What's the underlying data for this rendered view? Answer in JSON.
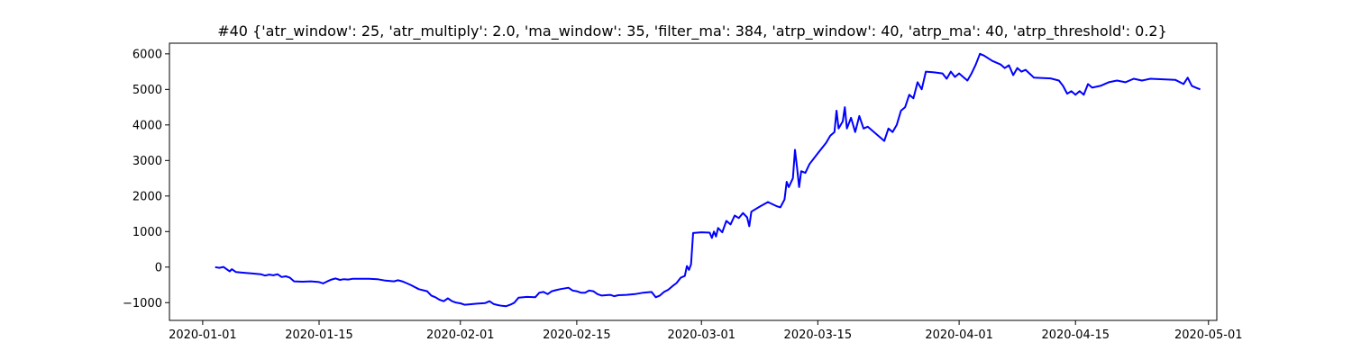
{
  "chart_data": {
    "type": "line",
    "title": "#40 {'atr_window': 25, 'atr_multiply': 2.0, 'ma_window': 35, 'filter_ma': 384, 'atrp_window': 40, 'atrp_ma': 40, 'atrp_threshold': 0.2}",
    "xlabel": "",
    "ylabel": "",
    "x_axis_type": "date",
    "xlim": [
      "2019-12-28",
      "2020-05-02"
    ],
    "ylim": [
      -1500,
      6300
    ],
    "grid": false,
    "line_color": "#0000ff",
    "xticks": [
      {
        "value": "2020-01-01",
        "label": "2020-01-01"
      },
      {
        "value": "2020-01-15",
        "label": "2020-01-15"
      },
      {
        "value": "2020-02-01",
        "label": "2020-02-01"
      },
      {
        "value": "2020-02-15",
        "label": "2020-02-15"
      },
      {
        "value": "2020-03-01",
        "label": "2020-03-01"
      },
      {
        "value": "2020-03-15",
        "label": "2020-03-15"
      },
      {
        "value": "2020-04-01",
        "label": "2020-04-01"
      },
      {
        "value": "2020-04-15",
        "label": "2020-04-15"
      },
      {
        "value": "2020-05-01",
        "label": "2020-05-01"
      }
    ],
    "yticks": [
      {
        "value": -1000,
        "label": "−1000"
      },
      {
        "value": 0,
        "label": "0"
      },
      {
        "value": 1000,
        "label": "1000"
      },
      {
        "value": 2000,
        "label": "2000"
      },
      {
        "value": 3000,
        "label": "3000"
      },
      {
        "value": 4000,
        "label": "4000"
      },
      {
        "value": 5000,
        "label": "5000"
      },
      {
        "value": 6000,
        "label": "6000"
      }
    ],
    "series": [
      {
        "points": [
          [
            "2020-01-02T12:00",
            0
          ],
          [
            "2020-01-03T00:00",
            -20
          ],
          [
            "2020-01-03T12:00",
            5
          ],
          [
            "2020-01-04T00:00",
            -80
          ],
          [
            "2020-01-04T06:00",
            -120
          ],
          [
            "2020-01-04T12:00",
            -60
          ],
          [
            "2020-01-05T00:00",
            -140
          ],
          [
            "2020-01-06T00:00",
            -160
          ],
          [
            "2020-01-07T00:00",
            -180
          ],
          [
            "2020-01-08T00:00",
            -200
          ],
          [
            "2020-01-08T12:00",
            -240
          ],
          [
            "2020-01-09T00:00",
            -210
          ],
          [
            "2020-01-09T12:00",
            -230
          ],
          [
            "2020-01-10T00:00",
            -200
          ],
          [
            "2020-01-10T12:00",
            -280
          ],
          [
            "2020-01-11T00:00",
            -260
          ],
          [
            "2020-01-11T12:00",
            -300
          ],
          [
            "2020-01-12T00:00",
            -400
          ],
          [
            "2020-01-13T00:00",
            -410
          ],
          [
            "2020-01-14T00:00",
            -400
          ],
          [
            "2020-01-15T00:00",
            -420
          ],
          [
            "2020-01-15T12:00",
            -460
          ],
          [
            "2020-01-16T00:00",
            -400
          ],
          [
            "2020-01-16T12:00",
            -350
          ],
          [
            "2020-01-17T00:00",
            -320
          ],
          [
            "2020-01-17T12:00",
            -360
          ],
          [
            "2020-01-18T00:00",
            -340
          ],
          [
            "2020-01-18T12:00",
            -350
          ],
          [
            "2020-01-19T00:00",
            -330
          ],
          [
            "2020-01-20T00:00",
            -330
          ],
          [
            "2020-01-21T00:00",
            -330
          ],
          [
            "2020-01-22T00:00",
            -340
          ],
          [
            "2020-01-23T00:00",
            -380
          ],
          [
            "2020-01-24T00:00",
            -400
          ],
          [
            "2020-01-24T12:00",
            -370
          ],
          [
            "2020-01-25T00:00",
            -400
          ],
          [
            "2020-01-25T12:00",
            -450
          ],
          [
            "2020-01-26T00:00",
            -500
          ],
          [
            "2020-01-27T00:00",
            -620
          ],
          [
            "2020-01-28T00:00",
            -680
          ],
          [
            "2020-01-28T12:00",
            -800
          ],
          [
            "2020-01-29T00:00",
            -850
          ],
          [
            "2020-01-29T12:00",
            -920
          ],
          [
            "2020-01-30T00:00",
            -960
          ],
          [
            "2020-01-30T12:00",
            -880
          ],
          [
            "2020-01-31T00:00",
            -960
          ],
          [
            "2020-01-31T12:00",
            -1000
          ],
          [
            "2020-02-01T00:00",
            -1020
          ],
          [
            "2020-02-01T12:00",
            -1060
          ],
          [
            "2020-02-02T00:00",
            -1050
          ],
          [
            "2020-02-03T00:00",
            -1030
          ],
          [
            "2020-02-04T00:00",
            -1010
          ],
          [
            "2020-02-04T12:00",
            -960
          ],
          [
            "2020-02-05T00:00",
            -1040
          ],
          [
            "2020-02-05T12:00",
            -1070
          ],
          [
            "2020-02-06T00:00",
            -1090
          ],
          [
            "2020-02-06T12:00",
            -1100
          ],
          [
            "2020-02-07T00:00",
            -1060
          ],
          [
            "2020-02-07T12:00",
            -1000
          ],
          [
            "2020-02-08T00:00",
            -860
          ],
          [
            "2020-02-09T00:00",
            -840
          ],
          [
            "2020-02-10T00:00",
            -850
          ],
          [
            "2020-02-10T12:00",
            -720
          ],
          [
            "2020-02-11T00:00",
            -700
          ],
          [
            "2020-02-11T12:00",
            -760
          ],
          [
            "2020-02-12T00:00",
            -680
          ],
          [
            "2020-02-12T12:00",
            -650
          ],
          [
            "2020-02-13T00:00",
            -620
          ],
          [
            "2020-02-14T00:00",
            -580
          ],
          [
            "2020-02-14T12:00",
            -660
          ],
          [
            "2020-02-15T00:00",
            -680
          ],
          [
            "2020-02-15T12:00",
            -720
          ],
          [
            "2020-02-16T00:00",
            -720
          ],
          [
            "2020-02-16T12:00",
            -660
          ],
          [
            "2020-02-17T00:00",
            -680
          ],
          [
            "2020-02-17T12:00",
            -760
          ],
          [
            "2020-02-18T00:00",
            -800
          ],
          [
            "2020-02-19T00:00",
            -780
          ],
          [
            "2020-02-19T12:00",
            -820
          ],
          [
            "2020-02-20T00:00",
            -790
          ],
          [
            "2020-02-21T00:00",
            -780
          ],
          [
            "2020-02-22T00:00",
            -760
          ],
          [
            "2020-02-23T00:00",
            -720
          ],
          [
            "2020-02-24T00:00",
            -700
          ],
          [
            "2020-02-24T12:00",
            -850
          ],
          [
            "2020-02-25T00:00",
            -800
          ],
          [
            "2020-02-25T12:00",
            -700
          ],
          [
            "2020-02-26T00:00",
            -640
          ],
          [
            "2020-02-26T12:00",
            -540
          ],
          [
            "2020-02-27T00:00",
            -450
          ],
          [
            "2020-02-27T12:00",
            -300
          ],
          [
            "2020-02-28T00:00",
            -250
          ],
          [
            "2020-02-28T06:00",
            30
          ],
          [
            "2020-02-28T12:00",
            -80
          ],
          [
            "2020-02-28T18:00",
            80
          ],
          [
            "2020-02-29T00:00",
            960
          ],
          [
            "2020-03-01T00:00",
            980
          ],
          [
            "2020-03-02T00:00",
            970
          ],
          [
            "2020-03-02T06:00",
            820
          ],
          [
            "2020-03-02T12:00",
            1000
          ],
          [
            "2020-03-02T18:00",
            860
          ],
          [
            "2020-03-03T00:00",
            1100
          ],
          [
            "2020-03-03T12:00",
            980
          ],
          [
            "2020-03-04T00:00",
            1300
          ],
          [
            "2020-03-04T12:00",
            1200
          ],
          [
            "2020-03-05T00:00",
            1450
          ],
          [
            "2020-03-05T12:00",
            1380
          ],
          [
            "2020-03-06T00:00",
            1520
          ],
          [
            "2020-03-06T12:00",
            1400
          ],
          [
            "2020-03-06T18:00",
            1150
          ],
          [
            "2020-03-07T00:00",
            1560
          ],
          [
            "2020-03-08T00:00",
            1700
          ],
          [
            "2020-03-09T00:00",
            1830
          ],
          [
            "2020-03-10T00:00",
            1720
          ],
          [
            "2020-03-10T12:00",
            1680
          ],
          [
            "2020-03-11T00:00",
            1900
          ],
          [
            "2020-03-11T06:00",
            2400
          ],
          [
            "2020-03-11T12:00",
            2250
          ],
          [
            "2020-03-12T00:00",
            2500
          ],
          [
            "2020-03-12T06:00",
            3300
          ],
          [
            "2020-03-12T12:00",
            2800
          ],
          [
            "2020-03-12T18:00",
            2250
          ],
          [
            "2020-03-13T00:00",
            2700
          ],
          [
            "2020-03-13T12:00",
            2650
          ],
          [
            "2020-03-14T00:00",
            2900
          ],
          [
            "2020-03-15T00:00",
            3200
          ],
          [
            "2020-03-16T00:00",
            3500
          ],
          [
            "2020-03-16T12:00",
            3700
          ],
          [
            "2020-03-17T00:00",
            3800
          ],
          [
            "2020-03-17T06:00",
            4400
          ],
          [
            "2020-03-17T12:00",
            3900
          ],
          [
            "2020-03-18T00:00",
            4100
          ],
          [
            "2020-03-18T06:00",
            4500
          ],
          [
            "2020-03-18T12:00",
            3900
          ],
          [
            "2020-03-19T00:00",
            4200
          ],
          [
            "2020-03-19T12:00",
            3800
          ],
          [
            "2020-03-20T00:00",
            4250
          ],
          [
            "2020-03-20T12:00",
            3900
          ],
          [
            "2020-03-21T00:00",
            3950
          ],
          [
            "2020-03-23T00:00",
            3550
          ],
          [
            "2020-03-23T12:00",
            3900
          ],
          [
            "2020-03-24T00:00",
            3800
          ],
          [
            "2020-03-24T12:00",
            4000
          ],
          [
            "2020-03-25T00:00",
            4400
          ],
          [
            "2020-03-25T12:00",
            4500
          ],
          [
            "2020-03-26T00:00",
            4850
          ],
          [
            "2020-03-26T12:00",
            4750
          ],
          [
            "2020-03-27T00:00",
            5200
          ],
          [
            "2020-03-27T12:00",
            5000
          ],
          [
            "2020-03-28T00:00",
            5500
          ],
          [
            "2020-03-29T00:00",
            5480
          ],
          [
            "2020-03-30T00:00",
            5450
          ],
          [
            "2020-03-30T12:00",
            5300
          ],
          [
            "2020-03-31T00:00",
            5500
          ],
          [
            "2020-03-31T12:00",
            5350
          ],
          [
            "2020-04-01T00:00",
            5450
          ],
          [
            "2020-04-02T00:00",
            5250
          ],
          [
            "2020-04-02T12:00",
            5450
          ],
          [
            "2020-04-03T00:00",
            5700
          ],
          [
            "2020-04-03T12:00",
            6000
          ],
          [
            "2020-04-04T00:00",
            5950
          ],
          [
            "2020-04-05T00:00",
            5800
          ],
          [
            "2020-04-06T00:00",
            5700
          ],
          [
            "2020-04-06T12:00",
            5600
          ],
          [
            "2020-04-07T00:00",
            5680
          ],
          [
            "2020-04-07T12:00",
            5400
          ],
          [
            "2020-04-08T00:00",
            5600
          ],
          [
            "2020-04-08T12:00",
            5500
          ],
          [
            "2020-04-09T00:00",
            5550
          ],
          [
            "2020-04-10T00:00",
            5330
          ],
          [
            "2020-04-12T00:00",
            5310
          ],
          [
            "2020-04-13T00:00",
            5250
          ],
          [
            "2020-04-13T12:00",
            5100
          ],
          [
            "2020-04-14T00:00",
            4880
          ],
          [
            "2020-04-14T12:00",
            4950
          ],
          [
            "2020-04-15T00:00",
            4850
          ],
          [
            "2020-04-15T12:00",
            4950
          ],
          [
            "2020-04-16T00:00",
            4850
          ],
          [
            "2020-04-16T12:00",
            5150
          ],
          [
            "2020-04-17T00:00",
            5050
          ],
          [
            "2020-04-18T00:00",
            5100
          ],
          [
            "2020-04-19T00:00",
            5200
          ],
          [
            "2020-04-20T00:00",
            5250
          ],
          [
            "2020-04-21T00:00",
            5200
          ],
          [
            "2020-04-22T00:00",
            5300
          ],
          [
            "2020-04-23T00:00",
            5250
          ],
          [
            "2020-04-24T00:00",
            5300
          ],
          [
            "2020-04-27T00:00",
            5270
          ],
          [
            "2020-04-28T00:00",
            5150
          ],
          [
            "2020-04-28T12:00",
            5330
          ],
          [
            "2020-04-29T00:00",
            5100
          ],
          [
            "2020-04-29T12:00",
            5050
          ],
          [
            "2020-04-30T00:00",
            5000
          ]
        ]
      }
    ]
  }
}
